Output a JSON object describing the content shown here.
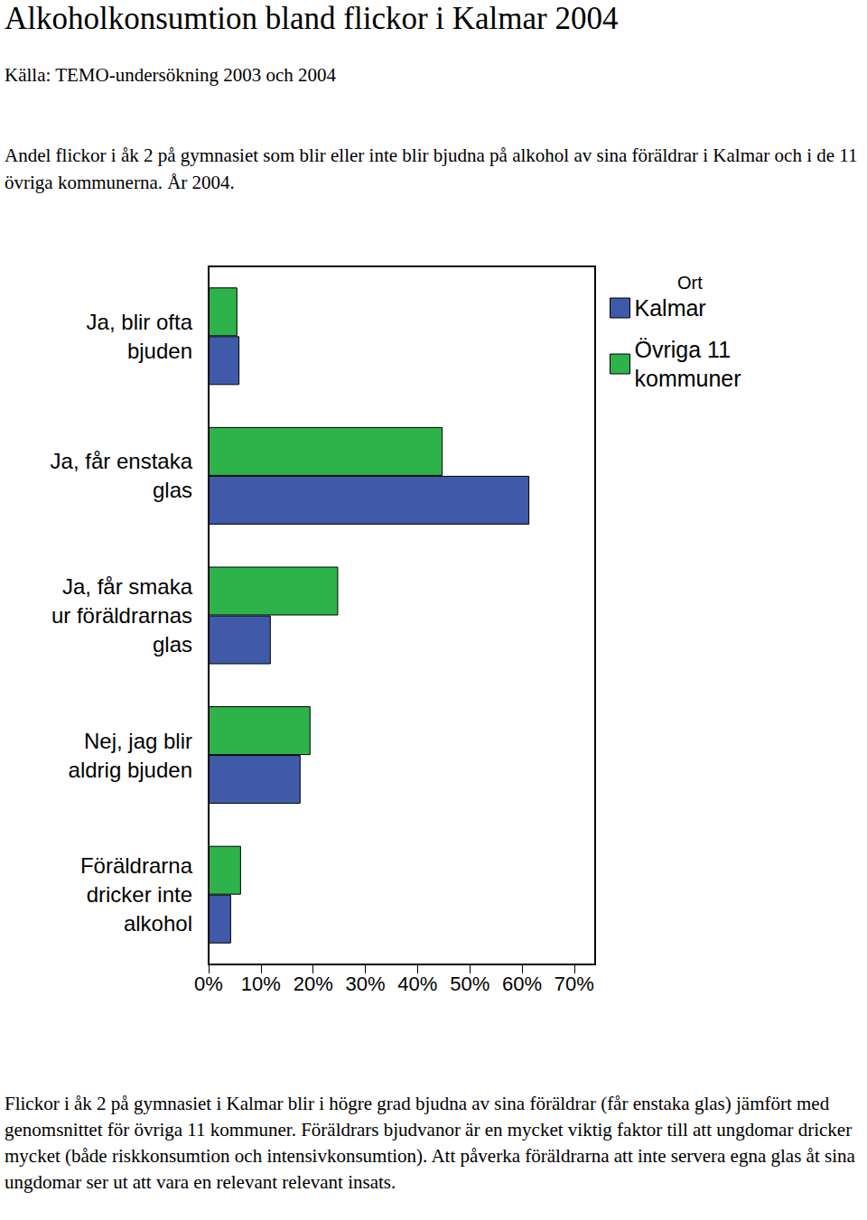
{
  "chart_data": {
    "type": "bar",
    "orientation": "horizontal",
    "title": "Alkoholkonsumtion bland flickor i Kalmar 2004",
    "subtitle": "Källa: TEMO-undersökning 2003 och 2004",
    "caption": "Andel flickor i åk 2 på gymnasiet som blir eller inte blir bjudna på alkohol av sina föräldrar i Kalmar och i de 11 övriga kommunerna. År 2004.",
    "note": "Flickor i åk 2 på gymnasiet i Kalmar blir i högre grad bjudna av sina föräldrar (får enstaka glas) jämfört med genomsnittet för övriga 11 kommuner. Föräldrars bjudvanor är en mycket viktig faktor till att ungdomar dricker mycket (både riskkonsumtion och intensivkonsumtion). Att påverka föräldrarna att inte servera egna glas åt sina ungdomar ser ut att vara en relevant relevant insats.",
    "legend_title": "Ort",
    "legend": "top-right",
    "grid": false,
    "categories": [
      "Ja, blir ofta\nbjuden",
      "Ja, får enstaka\nglas",
      "Ja, får smaka\nur föräldrarnas\nglas",
      "Nej, jag blir\naldrig bjuden",
      "Föräldrarna\ndricker inte\nalkohol"
    ],
    "series": [
      {
        "name": "Kalmar",
        "color": "#3f5aa9",
        "values": [
          5.9,
          61.4,
          11.9,
          17.6,
          4.3
        ]
      },
      {
        "name": "Övriga 11\nkommuner",
        "color": "#2db34a",
        "values": [
          5.5,
          44.8,
          24.8,
          19.5,
          6.2
        ]
      }
    ],
    "xlim": [
      0,
      74
    ],
    "xticks": [
      {
        "value": 0,
        "label": "0%"
      },
      {
        "value": 10,
        "label": "10%"
      },
      {
        "value": 20,
        "label": "20%"
      },
      {
        "value": 30,
        "label": "30%"
      },
      {
        "value": 40,
        "label": "40%"
      },
      {
        "value": 50,
        "label": "50%"
      },
      {
        "value": 60,
        "label": "60%"
      },
      {
        "value": 70,
        "label": "70%"
      }
    ]
  }
}
